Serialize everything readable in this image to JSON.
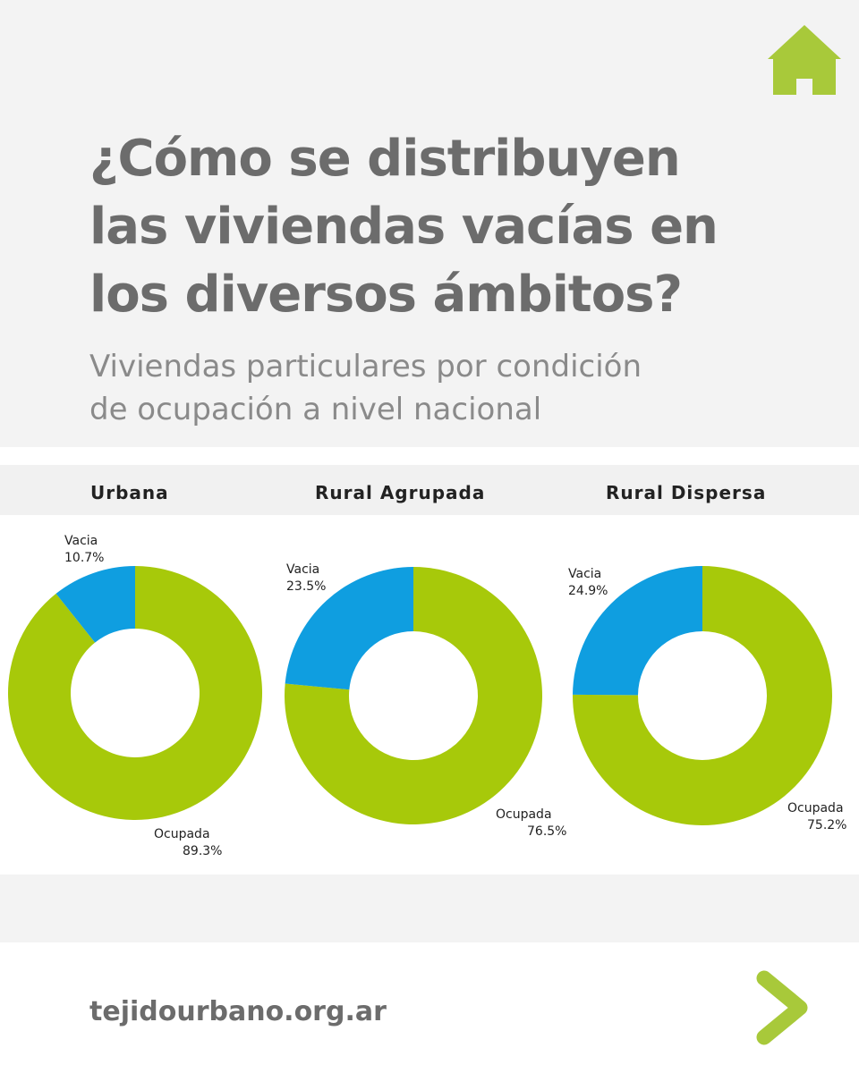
{
  "header": {
    "title_lines": [
      "¿Cómo se distribuyen",
      "las viviendas vacías en",
      "los diversos ámbitos?"
    ],
    "subtitle_lines": [
      "Viviendas particulares por condición",
      "de ocupación a nivel nacional"
    ],
    "home_icon": "home-icon"
  },
  "colors": {
    "ocupada": "#a7c90a",
    "vacia": "#0f9ee0",
    "heading_gray": "#6c6c6c",
    "brand_green": "#a8c93a"
  },
  "chart_data": [
    {
      "type": "pie",
      "title": "Urbana",
      "series": [
        {
          "name": "Ocupada",
          "value": 89.3,
          "label": "89.3%"
        },
        {
          "name": "Vacia",
          "value": 10.7,
          "label": "10.7%"
        }
      ]
    },
    {
      "type": "pie",
      "title": "Rural Agrupada",
      "series": [
        {
          "name": "Ocupada",
          "value": 76.5,
          "label": "76.5%"
        },
        {
          "name": "Vacia",
          "value": 23.5,
          "label": "23.5%"
        }
      ]
    },
    {
      "type": "pie",
      "title": "Rural Dispersa",
      "series": [
        {
          "name": "Ocupada",
          "value": 75.2,
          "label": "75.2%"
        },
        {
          "name": "Vacia",
          "value": 24.9,
          "label": "24.9%"
        }
      ]
    }
  ],
  "footer": {
    "url": "tejidourbano.org.ar",
    "next_icon": "chevron-right-icon"
  }
}
